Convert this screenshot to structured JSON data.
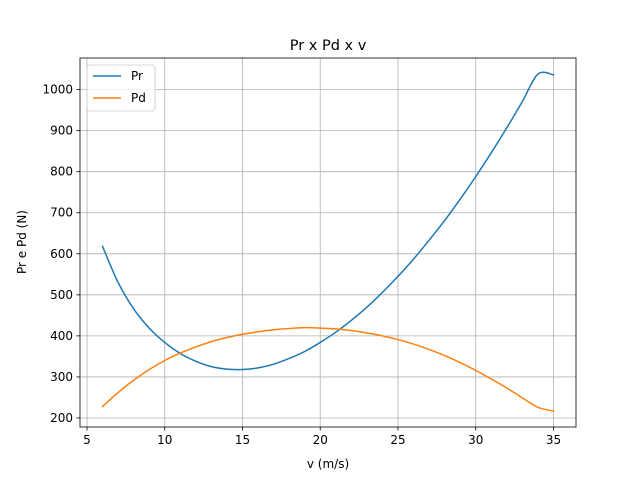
{
  "chart_data": {
    "type": "line",
    "title": "Pr x Pd x v",
    "xlabel": "v (m/s)",
    "ylabel": "Pr e Pd (N)",
    "xlim": [
      4.55,
      36.45
    ],
    "ylim": [
      178,
      1077
    ],
    "xticks": [
      5,
      10,
      15,
      20,
      25,
      30,
      35
    ],
    "yticks": [
      200,
      300,
      400,
      500,
      600,
      700,
      800,
      900,
      1000
    ],
    "grid": true,
    "legend_position": "top-left",
    "x": [
      6,
      7,
      8,
      9,
      10,
      11,
      12,
      13,
      14,
      15,
      16,
      17,
      18,
      19,
      20,
      21,
      22,
      23,
      24,
      25,
      26,
      27,
      28,
      29,
      30,
      31,
      32,
      33,
      34,
      35
    ],
    "series": [
      {
        "name": "Pr",
        "color": "#1f77b4",
        "values": [
          618,
          530,
          466,
          419,
          384,
          357,
          338,
          325,
          319,
          318,
          322,
          331,
          345,
          362,
          384,
          409,
          438,
          470,
          506,
          545,
          587,
          633,
          681,
          733,
          788,
          846,
          907,
          971,
          1038,
          1036
        ]
      },
      {
        "name": "Pd",
        "color": "#ff7f0e",
        "values": [
          228,
          262,
          292,
          318,
          340,
          358,
          373,
          386,
          396,
          404,
          410,
          415,
          418,
          420,
          419,
          417,
          413,
          407,
          400,
          391,
          380,
          367,
          352,
          335,
          316,
          295,
          273,
          249,
          226,
          217
        ]
      }
    ]
  }
}
